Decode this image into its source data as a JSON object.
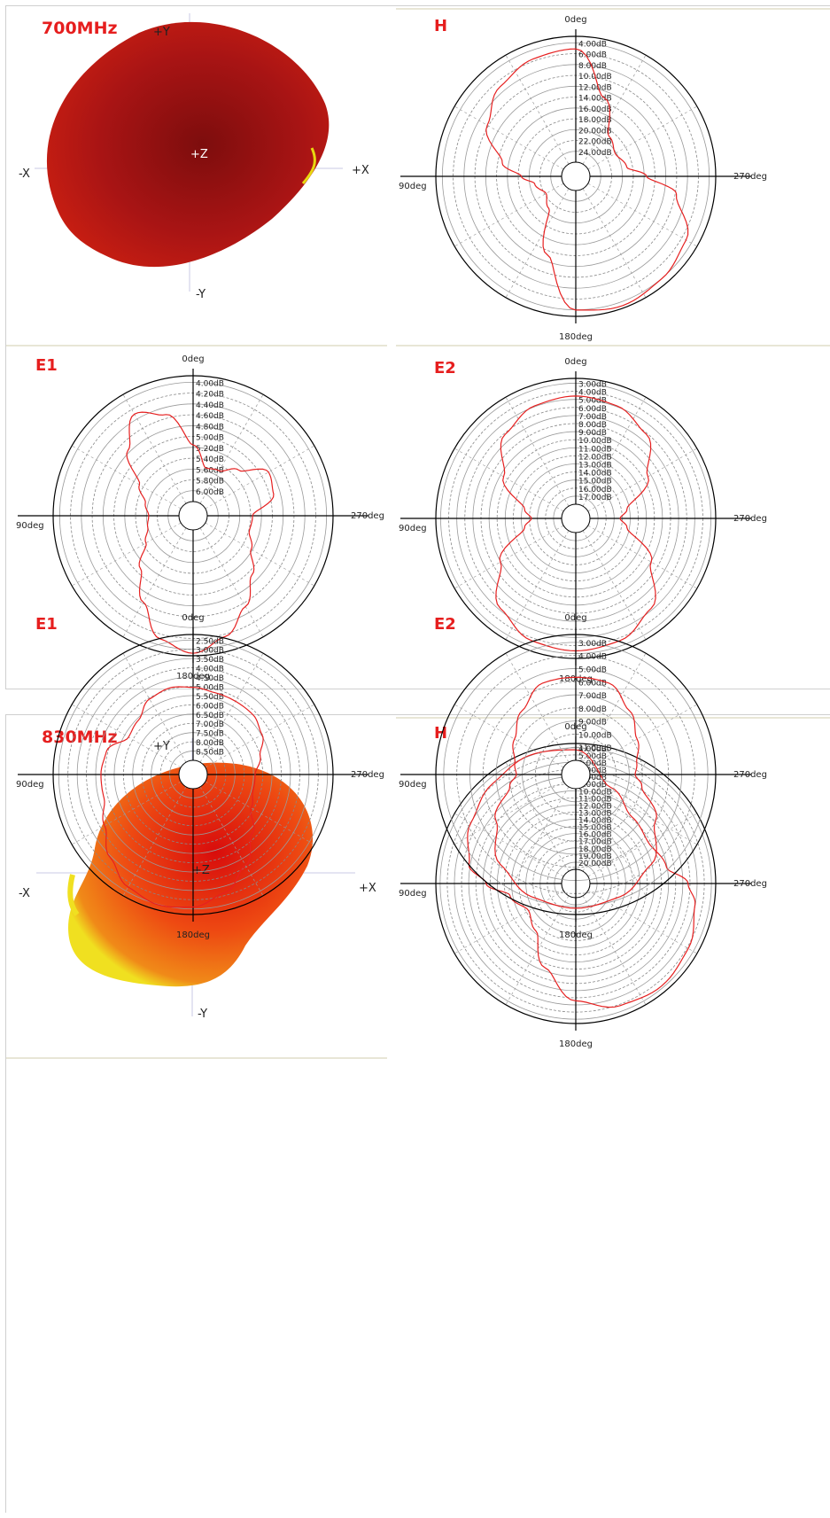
{
  "sections": [
    {
      "frequency": "700MHz",
      "pattern3d": {
        "axis_labels": {
          "py": "+Y",
          "ny": "-Y",
          "px": "+X",
          "nx": "-X",
          "pz": "+Z"
        },
        "colors": {
          "base": "#a81414",
          "highlight": "#c81e12",
          "edge": "#e8d810"
        }
      },
      "polar_plots": [
        {
          "plane": "H",
          "angle_labels": {
            "top": "0deg",
            "bottom": "180deg",
            "left": "90deg",
            "right": "270deg"
          },
          "rings": [
            "4.00dB",
            "6.00dB",
            "8.00dB",
            "10.00dB",
            "12.00dB",
            "14.00dB",
            "16.00dB",
            "18.00dB",
            "20.00dB",
            "22.00dB",
            "24.00dB"
          ],
          "trace_color": "#e62020"
        },
        {
          "plane": "E1",
          "angle_labels": {
            "top": "0deg",
            "bottom": "180deg",
            "left": "90deg",
            "right": "270deg"
          },
          "rings": [
            "4.00dB",
            "4.20dB",
            "4.40dB",
            "4.60dB",
            "4.80dB",
            "5.00dB",
            "5.20dB",
            "5.40dB",
            "5.60dB",
            "5.80dB",
            "6.00dB"
          ],
          "trace_color": "#e62020"
        },
        {
          "plane": "E2",
          "angle_labels": {
            "top": "0deg",
            "bottom": "180deg",
            "left": "90deg",
            "right": "270deg"
          },
          "rings": [
            "3.00dB",
            "4.00dB",
            "5.00dB",
            "6.00dB",
            "7.00dB",
            "8.00dB",
            "9.00dB",
            "10.00dB",
            "11.00dB",
            "12.00dB",
            "13.00dB",
            "14.00dB",
            "15.00dB",
            "16.00dB",
            "17.00dB"
          ],
          "trace_color": "#e62020"
        }
      ]
    },
    {
      "frequency": "830MHz",
      "pattern3d": {
        "axis_labels": {
          "py": "+Y",
          "ny": "-Y",
          "px": "+X",
          "nx": "-X",
          "pz": "+Z"
        },
        "colors": {
          "base": "#ee4a12",
          "highlight": "#e01010",
          "edge": "#f0e020"
        }
      },
      "polar_plots": [
        {
          "plane": "H",
          "angle_labels": {
            "top": "0deg",
            "bottom": "180deg",
            "left": "90deg",
            "right": "270deg"
          },
          "rings": [
            "4.00dB",
            "5.00dB",
            "6.00dB",
            "7.00dB",
            "8.00dB",
            "9.00dB",
            "10.00dB",
            "11.00dB",
            "12.00dB",
            "13.00dB",
            "14.00dB",
            "15.00dB",
            "16.00dB",
            "17.00dB",
            "18.00dB",
            "19.00dB",
            "20.00dB"
          ],
          "trace_color": "#e62020"
        },
        {
          "plane": "E1",
          "angle_labels": {
            "top": "0deg",
            "bottom": "180deg",
            "left": "90deg",
            "right": "270deg"
          },
          "rings": [
            "2.50dB",
            "3.00dB",
            "3.50dB",
            "4.00dB",
            "4.50dB",
            "5.00dB",
            "5.50dB",
            "6.00dB",
            "6.50dB",
            "7.00dB",
            "7.50dB",
            "8.00dB",
            "8.50dB"
          ],
          "trace_color": "#e62020"
        },
        {
          "plane": "E2",
          "angle_labels": {
            "top": "0deg",
            "bottom": "180deg",
            "left": "90deg",
            "right": "270deg"
          },
          "rings": [
            "3.00dB",
            "4.00dB",
            "5.00dB",
            "6.00dB",
            "7.00dB",
            "8.00dB",
            "9.00dB",
            "10.00dB",
            "11.00dB"
          ],
          "trace_color": "#e62020"
        }
      ]
    }
  ],
  "chart_data": [
    {
      "type": "polar",
      "frequency": "700MHz",
      "title": "H",
      "angle_unit": "deg",
      "r_labels": [
        "4.00dB",
        "6.00dB",
        "8.00dB",
        "10.00dB",
        "12.00dB",
        "14.00dB",
        "16.00dB",
        "18.00dB",
        "20.00dB",
        "22.00dB",
        "24.00dB"
      ],
      "series": [
        {
          "angles": [
            0,
            20,
            40,
            60,
            80,
            90,
            100,
            120,
            140,
            160,
            180,
            200,
            220,
            240,
            260,
            270,
            280,
            300,
            320,
            340
          ],
          "r": [
            0.9,
            0.88,
            0.82,
            0.7,
            0.48,
            0.32,
            0.22,
            0.16,
            0.22,
            0.55,
            0.95,
            0.98,
            0.95,
            0.9,
            0.7,
            0.45,
            0.3,
            0.25,
            0.3,
            0.55
          ]
        }
      ]
    },
    {
      "type": "polar",
      "frequency": "700MHz",
      "title": "E1",
      "angle_unit": "deg",
      "r_labels": [
        "4.00dB",
        "4.20dB",
        "4.40dB",
        "4.60dB",
        "4.80dB",
        "5.00dB",
        "5.20dB",
        "5.40dB",
        "5.60dB",
        "5.80dB",
        "6.00dB"
      ],
      "series": [
        {
          "angles": [
            0,
            15,
            30,
            45,
            60,
            75,
            90,
            105,
            120,
            135,
            150,
            165,
            180,
            195,
            210,
            225,
            240,
            255,
            270,
            285,
            300,
            315,
            330,
            345
          ],
          "r": [
            0.45,
            0.72,
            0.82,
            0.62,
            0.38,
            0.28,
            0.24,
            0.26,
            0.32,
            0.48,
            0.68,
            0.9,
            0.98,
            0.88,
            0.72,
            0.55,
            0.42,
            0.35,
            0.36,
            0.55,
            0.58,
            0.4,
            0.3,
            0.28
          ]
        }
      ]
    },
    {
      "type": "polar",
      "frequency": "700MHz",
      "title": "E2",
      "angle_unit": "deg",
      "r_labels": [
        "3.00dB",
        "4.00dB",
        "5.00dB",
        "6.00dB",
        "7.00dB",
        "8.00dB",
        "9.00dB",
        "10.00dB",
        "11.00dB",
        "12.00dB",
        "13.00dB",
        "14.00dB",
        "15.00dB",
        "16.00dB",
        "17.00dB"
      ],
      "series": [
        {
          "angles": [
            0,
            20,
            40,
            60,
            80,
            90,
            100,
            120,
            140,
            160,
            180,
            200,
            220,
            240,
            260,
            270,
            280,
            300,
            320,
            340
          ],
          "r": [
            0.86,
            0.84,
            0.76,
            0.55,
            0.3,
            0.24,
            0.3,
            0.58,
            0.82,
            0.92,
            0.94,
            0.92,
            0.82,
            0.58,
            0.3,
            0.24,
            0.3,
            0.55,
            0.76,
            0.84
          ]
        }
      ]
    },
    {
      "type": "polar",
      "frequency": "830MHz",
      "title": "H",
      "angle_unit": "deg",
      "r_labels": [
        "4.00dB",
        "5.00dB",
        "6.00dB",
        "7.00dB",
        "8.00dB",
        "9.00dB",
        "10.00dB",
        "11.00dB",
        "12.00dB",
        "13.00dB",
        "14.00dB",
        "15.00dB",
        "16.00dB",
        "17.00dB",
        "18.00dB",
        "19.00dB",
        "20.00dB"
      ],
      "series": [
        {
          "angles": [
            0,
            20,
            40,
            60,
            80,
            90,
            100,
            120,
            140,
            160,
            180,
            200,
            220,
            240,
            260,
            270,
            280,
            300,
            320,
            340
          ],
          "r": [
            0.95,
            0.97,
            0.92,
            0.85,
            0.75,
            0.6,
            0.42,
            0.32,
            0.38,
            0.6,
            0.82,
            0.92,
            0.95,
            0.92,
            0.85,
            0.78,
            0.62,
            0.55,
            0.58,
            0.7
          ]
        }
      ]
    },
    {
      "type": "polar",
      "frequency": "830MHz",
      "title": "E1",
      "angle_unit": "deg",
      "r_labels": [
        "2.50dB",
        "3.00dB",
        "3.50dB",
        "4.00dB",
        "4.50dB",
        "5.00dB",
        "5.50dB",
        "6.00dB",
        "6.50dB",
        "7.00dB",
        "7.50dB",
        "8.00dB",
        "8.50dB"
      ],
      "series": [
        {
          "angles": [
            0,
            15,
            30,
            45,
            60,
            75,
            90,
            105,
            120,
            135,
            150,
            165,
            180,
            195,
            210,
            225,
            240,
            255,
            270,
            285,
            300,
            315,
            330,
            345
          ],
          "r": [
            0.58,
            0.6,
            0.58,
            0.5,
            0.48,
            0.6,
            0.62,
            0.62,
            0.7,
            0.82,
            0.92,
            0.96,
            0.94,
            0.86,
            0.72,
            0.55,
            0.42,
            0.38,
            0.38,
            0.44,
            0.52,
            0.56,
            0.56,
            0.56
          ]
        }
      ]
    },
    {
      "type": "polar",
      "frequency": "830MHz",
      "title": "E2",
      "angle_unit": "deg",
      "r_labels": [
        "3.00dB",
        "4.00dB",
        "5.00dB",
        "6.00dB",
        "7.00dB",
        "8.00dB",
        "9.00dB",
        "10.00dB",
        "11.00dB"
      ],
      "series": [
        {
          "angles": [
            0,
            20,
            40,
            60,
            80,
            90,
            100,
            120,
            140,
            160,
            180,
            200,
            220,
            240,
            260,
            270,
            280,
            300,
            320,
            340
          ],
          "r": [
            0.66,
            0.66,
            0.55,
            0.45,
            0.38,
            0.36,
            0.42,
            0.62,
            0.82,
            0.92,
            0.95,
            0.92,
            0.82,
            0.62,
            0.42,
            0.36,
            0.38,
            0.45,
            0.55,
            0.66
          ]
        }
      ]
    }
  ]
}
